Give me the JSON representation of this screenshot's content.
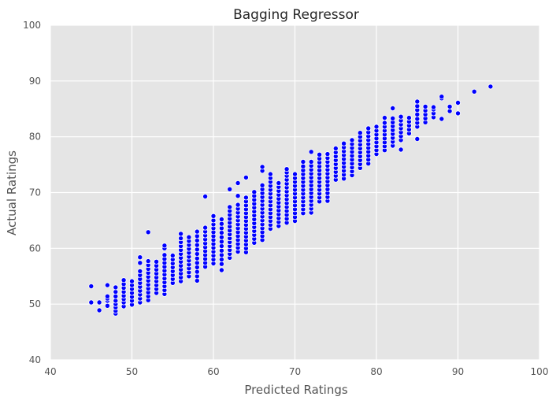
{
  "chart_data": {
    "type": "scatter",
    "title": "Bagging Regressor",
    "xlabel": "Predicted Ratings",
    "ylabel": "Actual Ratings",
    "xlim": [
      40,
      100
    ],
    "ylim": [
      40,
      100
    ],
    "xticks": [
      40,
      50,
      60,
      70,
      80,
      90,
      100
    ],
    "yticks": [
      40,
      50,
      60,
      70,
      80,
      90,
      100
    ],
    "grid": true,
    "background": "#e5e5e5",
    "point_color": "#0000ff",
    "columns": [
      {
        "x": 45,
        "y": [
          50.3,
          53.2
        ]
      },
      {
        "x": 46,
        "y": [
          48.9,
          50.3
        ]
      },
      {
        "x": 47,
        "y": [
          49.7,
          50.6,
          51.0,
          51.4,
          53.4
        ]
      },
      {
        "x": 48,
        "y": [
          48.3,
          48.8,
          49.4,
          50.0,
          50.6,
          51.4,
          52.2,
          53.0
        ]
      },
      {
        "x": 49,
        "y": [
          49.6,
          50.3,
          50.9,
          51.5,
          52.2,
          52.9,
          53.6,
          54.3
        ]
      },
      {
        "x": 50,
        "y": [
          49.9,
          50.6,
          51.3,
          52.0,
          52.7,
          53.4,
          54.1
        ]
      },
      {
        "x": 51,
        "y": [
          50.3,
          51.0,
          51.7,
          52.4,
          53.1,
          53.8,
          54.5,
          55.2,
          55.9,
          57.4,
          58.4
        ]
      },
      {
        "x": 52,
        "y": [
          50.7,
          51.4,
          52.1,
          52.8,
          53.5,
          54.2,
          54.9,
          55.6,
          56.3,
          57.0,
          57.7,
          62.9
        ]
      },
      {
        "x": 53,
        "y": [
          52.0,
          52.7,
          53.4,
          54.1,
          54.8,
          55.5,
          56.2,
          56.9,
          57.6
        ]
      },
      {
        "x": 54,
        "y": [
          51.8,
          52.5,
          53.2,
          53.9,
          54.6,
          55.3,
          56.0,
          56.7,
          57.4,
          58.1,
          58.8,
          60.0,
          60.5
        ]
      },
      {
        "x": 55,
        "y": [
          53.8,
          54.5,
          55.2,
          55.9,
          56.6,
          57.3,
          58.0,
          58.7
        ]
      },
      {
        "x": 56,
        "y": [
          54.1,
          54.8,
          55.5,
          56.2,
          56.9,
          57.6,
          58.3,
          59.0,
          59.7,
          60.4,
          61.1,
          61.8,
          62.6
        ]
      },
      {
        "x": 57,
        "y": [
          55.0,
          55.7,
          56.4,
          57.1,
          57.8,
          58.5,
          59.2,
          59.9,
          60.6,
          61.3,
          62.0
        ]
      },
      {
        "x": 58,
        "y": [
          54.2,
          55.0,
          55.8,
          56.6,
          57.4,
          58.2,
          59.0,
          59.8,
          60.6,
          61.4,
          62.2,
          63.0
        ]
      },
      {
        "x": 59,
        "y": [
          56.7,
          57.4,
          58.1,
          58.8,
          59.5,
          60.2,
          60.9,
          61.6,
          62.3,
          63.0,
          63.7,
          69.3
        ]
      },
      {
        "x": 60,
        "y": [
          57.3,
          58.0,
          58.7,
          59.4,
          60.1,
          60.8,
          61.5,
          62.2,
          62.9,
          63.6,
          64.3,
          65.0,
          65.8
        ]
      },
      {
        "x": 61,
        "y": [
          56.1,
          57.2,
          58.0,
          58.8,
          59.6,
          60.4,
          61.2,
          62.0,
          62.8,
          63.6,
          64.4,
          65.2
        ]
      },
      {
        "x": 62,
        "y": [
          58.3,
          59.0,
          59.7,
          60.4,
          61.1,
          61.8,
          62.5,
          63.2,
          63.9,
          64.6,
          65.3,
          66.0,
          66.7,
          67.4,
          70.6
        ]
      },
      {
        "x": 63,
        "y": [
          59.4,
          60.1,
          60.8,
          61.5,
          62.2,
          62.9,
          63.6,
          64.3,
          65.0,
          65.7,
          66.4,
          67.1,
          67.8,
          69.4,
          71.7
        ]
      },
      {
        "x": 64,
        "y": [
          59.3,
          60.0,
          60.7,
          61.4,
          62.1,
          62.8,
          63.5,
          64.2,
          64.9,
          65.6,
          66.3,
          67.0,
          67.7,
          68.4,
          69.1,
          72.7
        ]
      },
      {
        "x": 65,
        "y": [
          61.0,
          61.7,
          62.4,
          63.1,
          63.8,
          64.5,
          65.2,
          65.9,
          66.6,
          67.3,
          68.0,
          68.7,
          69.4,
          70.1
        ]
      },
      {
        "x": 66,
        "y": [
          61.5,
          62.2,
          62.9,
          63.6,
          64.3,
          65.0,
          65.7,
          66.4,
          67.1,
          67.8,
          68.5,
          69.2,
          69.9,
          70.6,
          71.3,
          73.9,
          74.6
        ]
      },
      {
        "x": 67,
        "y": [
          63.5,
          64.2,
          64.9,
          65.6,
          66.3,
          67.0,
          67.7,
          68.4,
          69.1,
          69.8,
          70.5,
          71.2,
          71.9,
          72.6,
          73.3
        ]
      },
      {
        "x": 68,
        "y": [
          64.0,
          64.7,
          65.4,
          66.1,
          66.8,
          67.5,
          68.2,
          68.9,
          69.6,
          70.3,
          71.0,
          71.7
        ]
      },
      {
        "x": 69,
        "y": [
          64.6,
          65.3,
          66.0,
          66.7,
          67.4,
          68.1,
          68.8,
          69.5,
          70.2,
          70.9,
          71.6,
          72.3,
          73.0,
          73.6,
          74.2
        ]
      },
      {
        "x": 70,
        "y": [
          64.9,
          65.6,
          66.3,
          67.0,
          67.7,
          68.4,
          69.1,
          69.8,
          70.5,
          71.2,
          71.9,
          72.6,
          73.3
        ]
      },
      {
        "x": 71,
        "y": [
          66.3,
          67.0,
          67.7,
          68.4,
          69.1,
          69.8,
          70.5,
          71.2,
          71.9,
          72.6,
          73.3,
          74.0,
          74.7,
          75.5
        ]
      },
      {
        "x": 72,
        "y": [
          66.4,
          67.1,
          67.8,
          68.5,
          69.2,
          69.9,
          70.6,
          71.3,
          72.0,
          72.7,
          73.4,
          74.1,
          74.8,
          75.5,
          77.3
        ]
      },
      {
        "x": 73,
        "y": [
          68.4,
          69.1,
          69.8,
          70.5,
          71.2,
          71.9,
          72.6,
          73.3,
          74.0,
          74.7,
          75.4,
          76.1,
          76.8
        ]
      },
      {
        "x": 74,
        "y": [
          68.5,
          69.2,
          69.9,
          70.6,
          71.3,
          72.0,
          72.7,
          73.4,
          74.1,
          74.8,
          75.5,
          76.2,
          76.9
        ]
      },
      {
        "x": 75,
        "y": [
          72.3,
          73.0,
          73.7,
          74.4,
          75.1,
          75.8,
          76.5,
          77.2,
          77.9
        ]
      },
      {
        "x": 76,
        "y": [
          72.5,
          73.2,
          73.9,
          74.6,
          75.3,
          76.0,
          76.7,
          77.4,
          78.1,
          78.8
        ]
      },
      {
        "x": 77,
        "y": [
          73.1,
          73.8,
          74.5,
          75.2,
          75.9,
          76.6,
          77.3,
          78.0,
          78.7,
          79.4
        ]
      },
      {
        "x": 78,
        "y": [
          74.4,
          75.1,
          75.8,
          76.5,
          77.2,
          77.9,
          78.6,
          79.3,
          80.0,
          80.7
        ]
      },
      {
        "x": 79,
        "y": [
          75.2,
          75.9,
          76.6,
          77.3,
          78.0,
          78.7,
          79.4,
          80.1,
          80.8,
          81.5
        ]
      },
      {
        "x": 80,
        "y": [
          76.9,
          77.6,
          78.3,
          79.0,
          79.7,
          80.4,
          81.1,
          81.8
        ]
      },
      {
        "x": 81,
        "y": [
          77.6,
          78.3,
          79.0,
          79.7,
          80.4,
          81.1,
          81.8,
          82.5,
          83.4
        ]
      },
      {
        "x": 82,
        "y": [
          78.4,
          79.1,
          79.8,
          80.5,
          81.2,
          81.9,
          82.6,
          83.3,
          85.1
        ]
      },
      {
        "x": 83,
        "y": [
          77.7,
          79.4,
          80.1,
          80.8,
          81.5,
          82.2,
          82.9,
          83.6
        ]
      },
      {
        "x": 84,
        "y": [
          80.6,
          81.3,
          82.0,
          82.7,
          83.4
        ]
      },
      {
        "x": 85,
        "y": [
          79.6,
          81.8,
          82.5,
          83.2,
          84.0,
          84.8,
          85.5,
          86.3
        ]
      },
      {
        "x": 86,
        "y": [
          82.6,
          83.3,
          84.0,
          84.7,
          85.4
        ]
      },
      {
        "x": 87,
        "y": [
          83.5,
          84.2,
          84.9,
          85.3
        ]
      },
      {
        "x": 88,
        "y": [
          83.2,
          86.9,
          87.2
        ]
      },
      {
        "x": 89,
        "y": [
          84.6,
          85.4
        ]
      },
      {
        "x": 90,
        "y": [
          84.2,
          86.1
        ]
      },
      {
        "x": 92,
        "y": [
          88.1
        ]
      },
      {
        "x": 94,
        "y": [
          89.0
        ]
      }
    ]
  }
}
